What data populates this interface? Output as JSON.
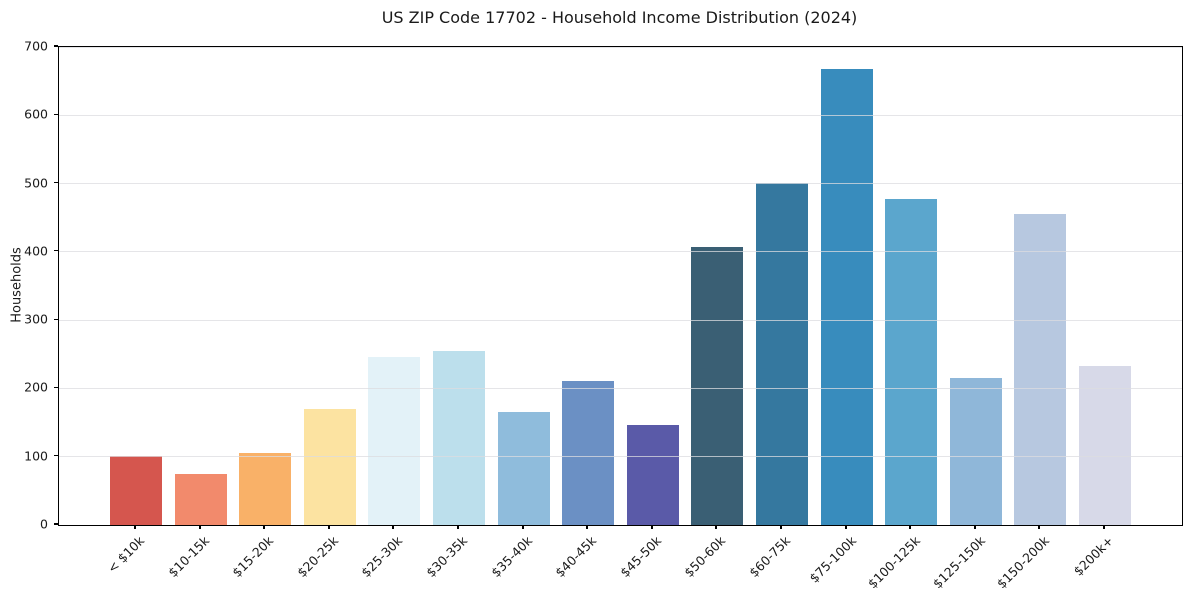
{
  "chart_data": {
    "type": "bar",
    "title": "US ZIP Code 17702 - Household Income Distribution (2024)",
    "xlabel": "",
    "ylabel": "Households",
    "categories": [
      "< $10k",
      "$10-15k",
      "$15-20k",
      "$20-25k",
      "$25-30k",
      "$30-35k",
      "$35-40k",
      "$40-45k",
      "$45-50k",
      "$50-60k",
      "$60-75k",
      "$75-100k",
      "$100-125k",
      "$125-150k",
      "$150-200k",
      "$200k+"
    ],
    "values": [
      101,
      74,
      105,
      170,
      246,
      255,
      165,
      211,
      146,
      407,
      501,
      668,
      477,
      215,
      455,
      233
    ],
    "bar_colors": [
      "#d5564e",
      "#f28a6c",
      "#f9b168",
      "#fce3a1",
      "#e3f2f8",
      "#bcdfec",
      "#8fbcdc",
      "#6b90c4",
      "#5a5aa8",
      "#3a5f74",
      "#35789f",
      "#388cbd",
      "#5ba6cd",
      "#8fb7d9",
      "#b7c8e0",
      "#d7d9e8"
    ],
    "ylim": [
      0,
      700
    ],
    "yticks": [
      0,
      100,
      200,
      300,
      400,
      500,
      600,
      700
    ],
    "grid": "horizontal",
    "grid_above_bars": true,
    "legend": "none",
    "colors": {
      "background": "#ffffff",
      "grid": "#dcdce0",
      "spine": "#000000",
      "text": "#1a1a1a"
    }
  }
}
